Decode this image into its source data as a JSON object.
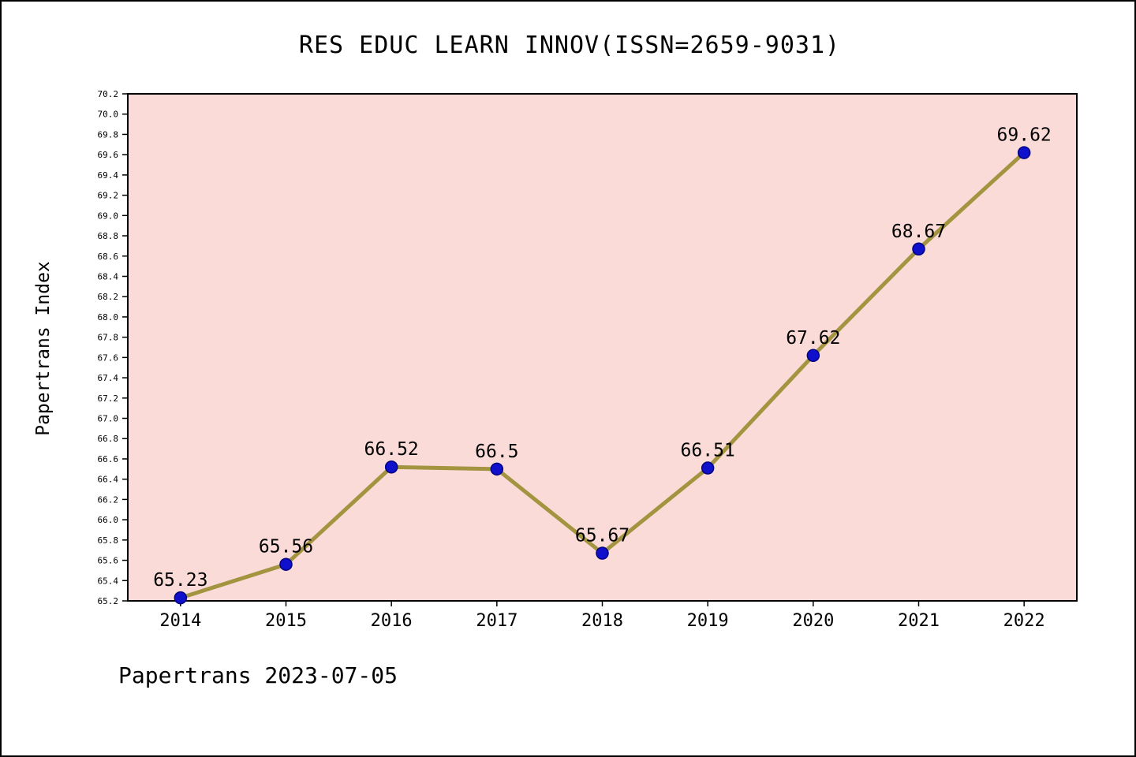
{
  "title": "RES EDUC LEARN INNOV(ISSN=2659-9031)",
  "footer": "Papertrans 2023-07-05",
  "colors": {
    "plot_bg": "#fadbd8",
    "line": "#a39440",
    "marker_fill": "#1010cc",
    "marker_edge": "#000080",
    "axis": "#000000",
    "text": "#000000"
  },
  "chart_data": {
    "type": "line",
    "title": "RES EDUC LEARN INNOV(ISSN=2659-9031)",
    "xlabel": "",
    "ylabel": "Papertrans Index",
    "x": [
      2014,
      2015,
      2016,
      2017,
      2018,
      2019,
      2020,
      2021,
      2022
    ],
    "values": [
      65.23,
      65.56,
      66.52,
      66.5,
      65.67,
      66.51,
      67.62,
      68.67,
      69.62
    ],
    "point_labels": [
      "65.23",
      "65.56",
      "66.52",
      "66.5",
      "65.67",
      "66.51",
      "67.62",
      "68.67",
      "69.62"
    ],
    "ylim": [
      65.2,
      70.2
    ],
    "ytick_step": 0.2,
    "grid": false,
    "legend_position": "none"
  }
}
